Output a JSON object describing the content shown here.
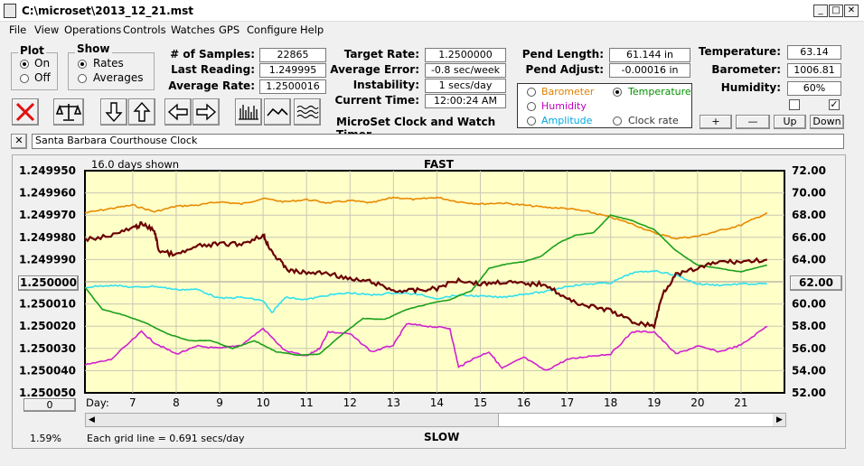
{
  "window": {
    "title": "C:\\microset\\2013_12_21.mst",
    "min": "_",
    "max": "□",
    "close": "✕"
  },
  "menu": [
    "File",
    "View",
    "Operations",
    "Controls",
    "Watches",
    "GPS",
    "Configure",
    "Help"
  ],
  "plot_group": {
    "title": "Plot",
    "on": "On",
    "off": "Off",
    "selected": "On"
  },
  "show_group": {
    "title": "Show",
    "rates": "Rates",
    "averages": "Averages",
    "selected": "Rates"
  },
  "stats": {
    "samples_label": "# of Samples:",
    "samples": "22865",
    "last_reading_label": "Last Reading:",
    "last_reading": "1.249995",
    "average_rate_label": "Average Rate:",
    "average_rate": "1.2500016",
    "target_rate_label": "Target Rate:",
    "target_rate": "1.2500000",
    "average_error_label": "Average Error:",
    "average_error": "-0.8 sec/week",
    "instability_label": "Instability:",
    "instability": "1 secs/day",
    "current_time_label": "Current Time:",
    "current_time": "12:00:24 AM",
    "pend_length_label": "Pend Length:",
    "pend_length": "61.144 in",
    "pend_adjust_label": "Pend Adjust:",
    "pend_adjust": "-0.00016 in",
    "temperature_label": "Temperature:",
    "temperature": "63.14",
    "barometer_label": "Barometer:",
    "barometer": "1006.81",
    "humidity_label": "Humidity:",
    "humidity": "60%"
  },
  "app_caption": "MicroSet Clock and Watch Timer",
  "sensor_options": [
    {
      "label": "Barometer",
      "color": "#e08000",
      "selected": false
    },
    {
      "label": "Temperature",
      "color": "#009000",
      "selected": true
    },
    {
      "label": "Humidity",
      "color": "#c000c0",
      "selected": false
    },
    {
      "label": "Clock rate",
      "color": "#333333",
      "selected": false
    },
    {
      "label": "Amplitude",
      "color": "#00a8e0",
      "selected": false
    }
  ],
  "adjust_buttons": {
    "plus": "+",
    "minus": "—",
    "up": "Up",
    "down": "Down"
  },
  "checkboxes": [
    {
      "checked": false
    },
    {
      "checked": true
    }
  ],
  "description": {
    "close": "✕",
    "value": "Santa Barbara Courthouse Clock"
  },
  "graph": {
    "days_shown": "16.0 days shown",
    "fast_label": "FAST",
    "slow_label": "SLOW",
    "center_left": "1.250000",
    "center_right": "62.00",
    "day_label": "Day:",
    "day_box": "0",
    "percent": "1.59%",
    "grid_note": "Each grid line = 0.691 secs/day",
    "colors": {
      "plot_bg": "#ffffc8",
      "barometer": "#e88a00",
      "temperature": "#1aa01a",
      "humidity": "#d020d0",
      "amplitude": "#30e0f0",
      "rate": "#6a0000"
    }
  },
  "chart_data": {
    "type": "line",
    "x_ticks": [
      "7",
      "8",
      "9",
      "10",
      "11",
      "12",
      "13",
      "14",
      "15",
      "16",
      "17",
      "18",
      "19",
      "20",
      "21"
    ],
    "y_left_ticks": [
      "1.249950",
      "1.249960",
      "1.249970",
      "1.249980",
      "1.249990",
      "1.250000",
      "1.250010",
      "1.250020",
      "1.250030",
      "1.250040",
      "1.250050"
    ],
    "y_right_ticks": [
      "72.00",
      "70.00",
      "68.00",
      "66.00",
      "64.00",
      "62.00",
      "60.00",
      "58.00",
      "56.00",
      "54.00",
      "52.00"
    ],
    "xlim": [
      5.9,
      22.0
    ],
    "ylim_left": [
      1.25005,
      1.24995
    ],
    "ylim_right": [
      52,
      72
    ],
    "grid": true,
    "series": [
      {
        "key": "barometer",
        "axis": "right",
        "x": [
          5.9,
          6.5,
          7,
          7.5,
          8,
          8.5,
          9,
          9.5,
          10,
          10.5,
          11,
          11.5,
          12,
          12.5,
          13,
          13.5,
          14,
          14.5,
          15,
          15.5,
          16,
          16.5,
          17,
          17.5,
          18,
          18.5,
          19,
          19.5,
          20,
          20.5,
          21,
          21.6
        ],
        "values": [
          68.2,
          68.6,
          68.9,
          68.3,
          68.8,
          68.9,
          69.2,
          69.0,
          69.5,
          69.2,
          69.4,
          69.1,
          69.3,
          69.1,
          69.6,
          69.4,
          69.6,
          69.2,
          69.0,
          69.1,
          68.9,
          68.7,
          68.6,
          68.3,
          67.8,
          67.2,
          66.4,
          65.9,
          66.1,
          66.6,
          67.1,
          68.2
        ]
      },
      {
        "key": "temperature",
        "axis": "right",
        "x": [
          5.9,
          6.3,
          6.8,
          7.3,
          7.8,
          8.3,
          8.8,
          9.3,
          9.8,
          10.3,
          10.8,
          11.3,
          11.8,
          12.3,
          12.8,
          13.3,
          13.8,
          14.3,
          14.8,
          15.2,
          15.6,
          16.0,
          16.4,
          16.8,
          17.2,
          17.6,
          18.0,
          18.5,
          19.0,
          19.5,
          20.0,
          20.5,
          21.0,
          21.6
        ],
        "values": [
          61.5,
          59.5,
          59.0,
          58.3,
          57.3,
          56.7,
          56.7,
          56.0,
          56.7,
          55.7,
          55.4,
          55.5,
          57.2,
          58.7,
          58.6,
          59.5,
          60.0,
          60.4,
          61.2,
          63.2,
          63.6,
          63.8,
          64.3,
          65.5,
          66.2,
          66.4,
          68.0,
          67.5,
          66.7,
          64.8,
          63.5,
          63.2,
          62.9,
          63.5
        ]
      },
      {
        "key": "humidity",
        "axis": "right",
        "x": [
          5.9,
          6.5,
          7.2,
          7.5,
          8.0,
          8.5,
          9.0,
          9.5,
          10.0,
          10.5,
          11.0,
          11.3,
          11.5,
          12.0,
          12.5,
          13.0,
          13.3,
          13.8,
          14.3,
          14.5,
          14.8,
          15.2,
          15.5,
          16.0,
          16.5,
          17.0,
          17.5,
          18.0,
          18.5,
          19.0,
          19.5,
          20.0,
          20.5,
          21.0,
          21.6
        ],
        "values": [
          54.5,
          55.0,
          57.5,
          56.5,
          55.5,
          56.2,
          56.0,
          56.3,
          57.8,
          55.8,
          55.3,
          56.0,
          57.5,
          57.3,
          55.7,
          56.3,
          58.2,
          58.0,
          57.8,
          54.3,
          55.0,
          55.7,
          54.2,
          55.2,
          54.0,
          55.0,
          55.3,
          55.5,
          57.5,
          57.5,
          55.5,
          56.2,
          55.7,
          56.3,
          58.0
        ]
      },
      {
        "key": "amplitude",
        "axis": "right",
        "x": [
          5.9,
          6.5,
          7.0,
          7.5,
          8.0,
          8.5,
          9.0,
          9.5,
          10.0,
          10.2,
          10.5,
          11.0,
          11.5,
          12.0,
          12.5,
          13.0,
          13.5,
          14.0,
          14.5,
          15.0,
          15.5,
          16.0,
          16.5,
          17.0,
          17.5,
          18.0,
          18.5,
          19.0,
          19.5,
          20.0,
          20.5,
          21.0,
          21.6
        ],
        "values": [
          61.5,
          61.7,
          61.5,
          61.6,
          61.3,
          61.3,
          60.5,
          60.6,
          60.3,
          59.2,
          60.6,
          60.4,
          60.8,
          61.0,
          60.8,
          61.0,
          60.9,
          60.5,
          60.8,
          60.7,
          60.6,
          60.9,
          61.1,
          61.6,
          61.8,
          61.9,
          62.8,
          63.0,
          62.6,
          61.8,
          61.7,
          61.8,
          61.8
        ]
      },
      {
        "key": "rate",
        "axis": "left",
        "x": [
          5.9,
          6.5,
          7.0,
          7.2,
          7.5,
          7.6,
          8.0,
          8.5,
          9.0,
          9.5,
          10.0,
          10.1,
          10.3,
          10.6,
          11.0,
          11.5,
          12.0,
          12.5,
          13.0,
          13.5,
          14.0,
          14.5,
          15.0,
          15.5,
          16.0,
          16.5,
          17.0,
          17.5,
          18.0,
          18.5,
          19.0,
          19.2,
          19.5,
          20.0,
          20.5,
          21.0,
          21.6
        ],
        "values": [
          1.249981,
          1.249979,
          1.249976,
          1.249974,
          1.249977,
          1.249986,
          1.249988,
          1.249984,
          1.249983,
          1.249983,
          1.249979,
          1.249983,
          1.249989,
          1.249995,
          1.249996,
          1.249996,
          1.249999,
          1.25,
          1.250004,
          1.250004,
          1.250003,
          1.249999,
          1.250001,
          1.25,
          1.250001,
          1.250001,
          1.250008,
          1.250011,
          1.250013,
          1.250018,
          1.25002,
          1.250005,
          1.249997,
          1.249994,
          1.249991,
          1.249991,
          1.24999
        ]
      }
    ]
  }
}
